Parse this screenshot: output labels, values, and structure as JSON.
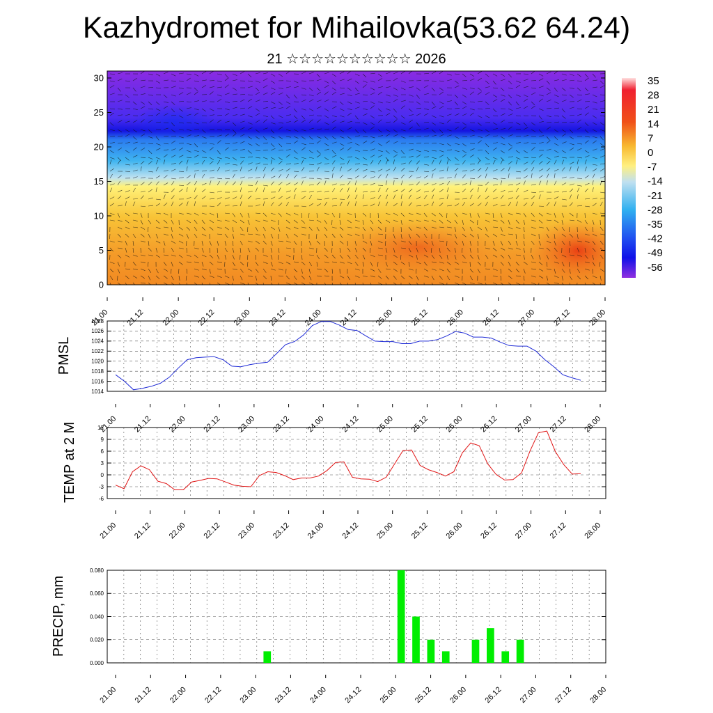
{
  "header": {
    "title": "Kazhydromet for Mihailovka(53.62 64.24)",
    "subtitle": "21 ☆☆☆☆☆☆☆☆☆☆ 2026"
  },
  "colors": {
    "pmsl_line": "#1f2bd6",
    "temp_line": "#e01414",
    "precip_bar": "#00ee00",
    "colorbar": [
      "#ffdede",
      "#f02030",
      "#f07020",
      "#f8b830",
      "#fff080",
      "#c0e0f0",
      "#30b0f0",
      "#2050f0",
      "#1010e8",
      "#9030e0"
    ]
  },
  "chart_data": [
    {
      "type": "heatmap",
      "name": "cross-section",
      "ylim": [
        0,
        30
      ],
      "yticks": [
        "0",
        "5",
        "10",
        "15",
        "20",
        "25",
        "30"
      ],
      "xticks": [
        "21.00",
        "21.12",
        "22.00",
        "22.12",
        "23.00",
        "23.12",
        "24.00",
        "24.12",
        "25.00",
        "25.12",
        "26.00",
        "26.12",
        "27.00",
        "27.12",
        "28.00"
      ],
      "colorbar_labels": [
        "35",
        "28",
        "21",
        "14",
        "7",
        "0",
        "-7",
        "-14",
        "-21",
        "-28",
        "-35",
        "-42",
        "-49",
        "-56"
      ]
    },
    {
      "type": "line",
      "name": "pmsl",
      "ylabel": "PMSL",
      "ylim": [
        1014,
        1028
      ],
      "yticks": [
        "1014",
        "1016",
        "1018",
        "1020",
        "1022",
        "1024",
        "1026",
        "1028"
      ],
      "xticks": [
        "21.00",
        "21.12",
        "22.00",
        "22.12",
        "23.00",
        "23.12",
        "24.00",
        "24.12",
        "25.00",
        "25.12",
        "26.00",
        "26.12",
        "27.00",
        "27.12",
        "28.00"
      ],
      "values": [
        1017.3,
        1016.0,
        1014.3,
        1014.6,
        1015.0,
        1015.6,
        1016.8,
        1018.6,
        1020.3,
        1020.7,
        1020.8,
        1020.9,
        1020.3,
        1019.0,
        1018.9,
        1019.3,
        1019.6,
        1019.8,
        1021.5,
        1023.3,
        1023.9,
        1025.2,
        1027.1,
        1027.9,
        1027.9,
        1027.2,
        1026.3,
        1026.1,
        1025.0,
        1024.0,
        1023.9,
        1023.9,
        1023.5,
        1023.5,
        1024.0,
        1024.0,
        1024.3,
        1025.0,
        1025.9,
        1025.6,
        1024.8,
        1024.8,
        1024.6,
        1023.8,
        1023.1,
        1023.0,
        1023.0,
        1022.0,
        1020.3,
        1018.9,
        1017.3,
        1016.7,
        1016.2
      ]
    },
    {
      "type": "line",
      "name": "temp",
      "ylabel": "TEMP at 2 M",
      "ylim": [
        -6,
        12
      ],
      "yticks": [
        "-6",
        "-3",
        "0",
        "3",
        "6",
        "9",
        "12"
      ],
      "xticks": [
        "21.00",
        "21.12",
        "22.00",
        "22.12",
        "23.00",
        "23.12",
        "24.00",
        "24.12",
        "25.00",
        "25.12",
        "26.00",
        "26.12",
        "27.00",
        "27.12",
        "28.00"
      ],
      "values": [
        -2.6,
        -3.5,
        0.8,
        2.3,
        1.3,
        -1.6,
        -2.2,
        -3.8,
        -3.8,
        -1.8,
        -1.4,
        -0.9,
        -1.0,
        -1.8,
        -2.6,
        -2.9,
        -3.0,
        -0.2,
        0.8,
        0.6,
        -0.2,
        -1.2,
        -0.8,
        -0.8,
        -0.3,
        1.1,
        3.1,
        3.3,
        -0.6,
        -1.0,
        -1.1,
        -1.7,
        -0.6,
        2.8,
        6.2,
        6.3,
        2.4,
        1.3,
        0.6,
        -0.3,
        0.8,
        5.6,
        8.1,
        7.4,
        2.8,
        0.1,
        -1.3,
        -1.2,
        0.5,
        6.0,
        10.7,
        11.1,
        5.9,
        2.6,
        0.2,
        0.3
      ]
    },
    {
      "type": "bar",
      "name": "precip",
      "ylabel": "PRECIP, mm",
      "ylim": [
        0,
        0.08
      ],
      "yticks": [
        "0.000",
        "0.020",
        "0.040",
        "0.060",
        "0.080"
      ],
      "xticks": [
        "21.00",
        "21.12",
        "22.00",
        "22.12",
        "23.00",
        "23.12",
        "24.00",
        "24.12",
        "25.00",
        "25.12",
        "26.00",
        "26.12",
        "27.00",
        "27.12",
        "28.00"
      ],
      "bars": [
        {
          "start": 21,
          "value": 0.01
        },
        {
          "start": 39,
          "value": 0.08
        },
        {
          "start": 41,
          "value": 0.04
        },
        {
          "start": 43,
          "value": 0.02
        },
        {
          "start": 45,
          "value": 0.01
        },
        {
          "start": 49,
          "value": 0.02
        },
        {
          "start": 51,
          "value": 0.03
        },
        {
          "start": 53,
          "value": 0.01
        },
        {
          "start": 55,
          "value": 0.02
        }
      ]
    }
  ]
}
